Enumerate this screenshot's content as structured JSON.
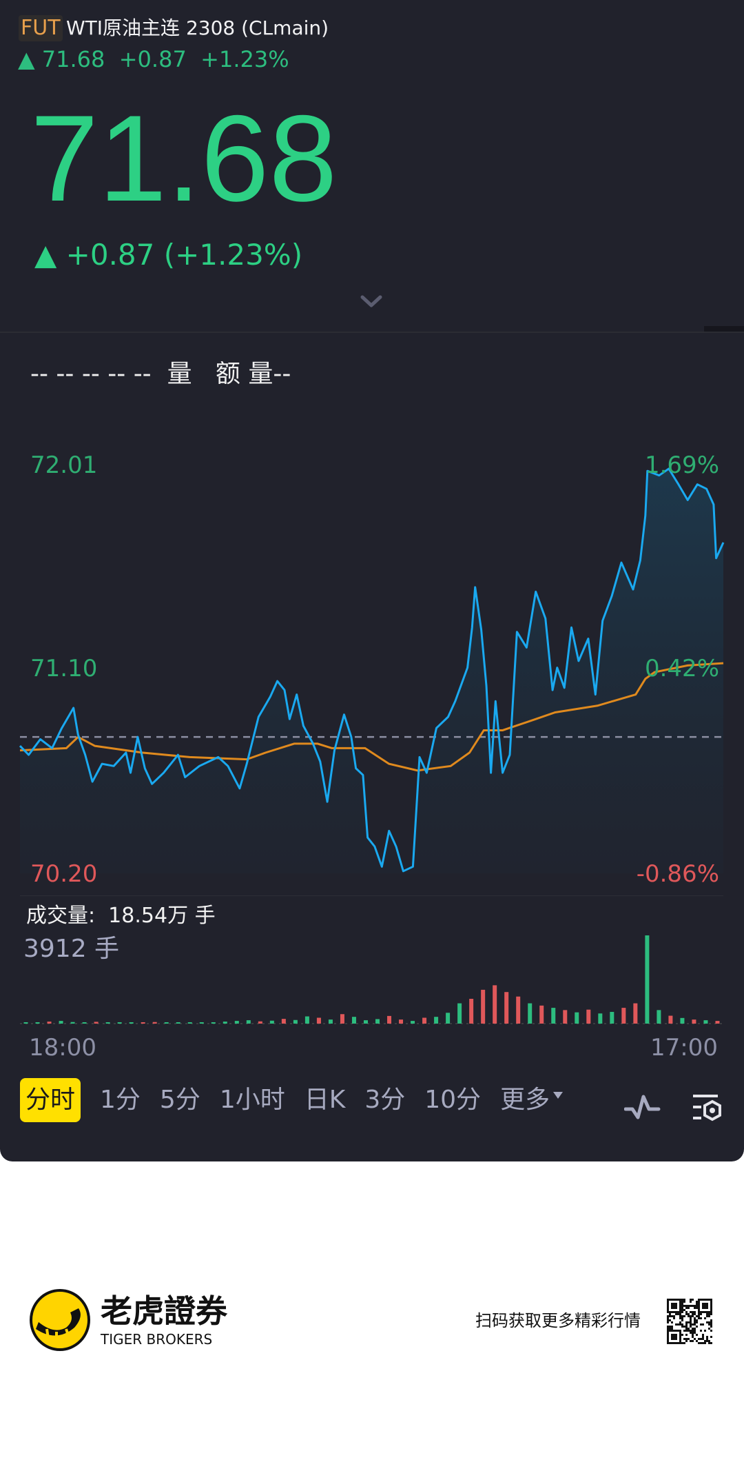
{
  "header": {
    "badge": "FUT",
    "title": "WTI原油主连 2308 (CLmain)",
    "quote_line": "▲ 71.68  +0.87  +1.23%"
  },
  "price": {
    "last": "71.68",
    "change_line": "▲ +0.87 (+1.23%)",
    "expand_icon": "chevron-down-icon"
  },
  "indicator_row": "-- -- -- -- --  量   额 量--",
  "chart_labels": {
    "price_high": "72.01",
    "price_mid": "71.10",
    "price_low": "70.20",
    "pct_high": "1.69%",
    "pct_mid": "0.42%",
    "pct_low": "-0.86%"
  },
  "volume": {
    "total_label": "成交量:  18.54万 手",
    "max_label": "3912 手"
  },
  "time_axis": {
    "start": "18:00",
    "end": "17:00"
  },
  "tabs": [
    {
      "label": "分时",
      "active": true
    },
    {
      "label": "1分"
    },
    {
      "label": "5分"
    },
    {
      "label": "1小时"
    },
    {
      "label": "日K"
    },
    {
      "label": "3分"
    },
    {
      "label": "10分"
    },
    {
      "label": "更多"
    }
  ],
  "toolbar_icons": [
    "chevron-down-small-icon",
    "indicator-wave-icon",
    "chart-settings-icon"
  ],
  "footer": {
    "brand_cn": "老虎證券",
    "brand_en": "TIGER BROKERS",
    "scan_text": "扫码获取更多精彩行情"
  },
  "colors": {
    "background": "#21222c",
    "up": "#2dbd7f",
    "down": "#e0585a",
    "price_line": "#1aa9f0",
    "avg_line": "#e08a1e",
    "active_tab": "#ffe000",
    "badge": "#e8a04c"
  },
  "chart_data": {
    "type": "line",
    "ylim": [
      70.2,
      72.01
    ],
    "prev_close": 70.81,
    "pct_range": [
      -0.86,
      1.69
    ],
    "x_range": [
      "18:00",
      "17:00"
    ],
    "series": [
      {
        "key": "price",
        "points": [
          [
            "18:00",
            70.77
          ],
          [
            "18:17",
            70.73
          ],
          [
            "18:40",
            70.8
          ],
          [
            "19:03",
            70.76
          ],
          [
            "19:22",
            70.85
          ],
          [
            "19:45",
            70.94
          ],
          [
            "19:54",
            70.82
          ],
          [
            "20:08",
            70.73
          ],
          [
            "20:22",
            70.61
          ],
          [
            "20:41",
            70.69
          ],
          [
            "21:04",
            70.68
          ],
          [
            "21:28",
            70.74
          ],
          [
            "21:37",
            70.65
          ],
          [
            "21:51",
            70.81
          ],
          [
            "22:05",
            70.67
          ],
          [
            "22:19",
            70.6
          ],
          [
            "22:42",
            70.65
          ],
          [
            "23:10",
            70.73
          ],
          [
            "23:24",
            70.63
          ],
          [
            "23:52",
            70.68
          ],
          [
            "00:29",
            70.72
          ],
          [
            "00:48",
            70.68
          ],
          [
            "01:11",
            70.58
          ],
          [
            "01:25",
            70.69
          ],
          [
            "01:48",
            70.9
          ],
          [
            "02:11",
            70.99
          ],
          [
            "02:25",
            71.06
          ],
          [
            "02:39",
            71.02
          ],
          [
            "02:49",
            70.89
          ],
          [
            "03:03",
            71.0
          ],
          [
            "03:16",
            70.86
          ],
          [
            "03:35",
            70.78
          ],
          [
            "03:49",
            70.7
          ],
          [
            "04:03",
            70.52
          ],
          [
            "04:17",
            70.75
          ],
          [
            "04:36",
            70.91
          ],
          [
            "04:50",
            70.81
          ],
          [
            "04:59",
            70.67
          ],
          [
            "05:13",
            70.64
          ],
          [
            "05:22",
            70.36
          ],
          [
            "05:36",
            70.32
          ],
          [
            "05:50",
            70.23
          ],
          [
            "06:04",
            70.39
          ],
          [
            "06:18",
            70.32
          ],
          [
            "06:32",
            70.21
          ],
          [
            "06:51",
            70.23
          ],
          [
            "07:04",
            70.72
          ],
          [
            "07:18",
            70.65
          ],
          [
            "07:37",
            70.85
          ],
          [
            "08:00",
            70.9
          ],
          [
            "08:14",
            70.97
          ],
          [
            "08:38",
            71.12
          ],
          [
            "08:47",
            71.3
          ],
          [
            "08:53",
            71.48
          ],
          [
            "09:05",
            71.29
          ],
          [
            "09:15",
            71.04
          ],
          [
            "09:24",
            70.65
          ],
          [
            "09:33",
            70.97
          ],
          [
            "09:47",
            70.65
          ],
          [
            "10:01",
            70.73
          ],
          [
            "10:15",
            71.28
          ],
          [
            "10:34",
            71.21
          ],
          [
            "10:52",
            71.46
          ],
          [
            "11:11",
            71.34
          ],
          [
            "11:25",
            71.02
          ],
          [
            "11:34",
            71.12
          ],
          [
            "11:48",
            71.03
          ],
          [
            "12:02",
            71.3
          ],
          [
            "12:16",
            71.15
          ],
          [
            "12:35",
            71.25
          ],
          [
            "12:49",
            71.0
          ],
          [
            "13:03",
            71.33
          ],
          [
            "13:21",
            71.44
          ],
          [
            "13:40",
            71.59
          ],
          [
            "14:03",
            71.47
          ],
          [
            "14:17",
            71.6
          ],
          [
            "14:27",
            71.8
          ],
          [
            "14:31",
            72.0
          ],
          [
            "14:54",
            71.98
          ],
          [
            "15:13",
            72.01
          ],
          [
            "15:32",
            71.94
          ],
          [
            "15:50",
            71.87
          ],
          [
            "16:09",
            71.94
          ],
          [
            "16:27",
            71.92
          ],
          [
            "16:41",
            71.85
          ],
          [
            "16:46",
            71.61
          ],
          [
            "17:00",
            71.68
          ]
        ]
      },
      {
        "key": "average",
        "points": [
          [
            "18:00",
            70.75
          ],
          [
            "19:31",
            70.76
          ],
          [
            "19:54",
            70.81
          ],
          [
            "20:27",
            70.77
          ],
          [
            "22:00",
            70.74
          ],
          [
            "23:33",
            70.72
          ],
          [
            "01:25",
            70.71
          ],
          [
            "02:02",
            70.74
          ],
          [
            "02:58",
            70.78
          ],
          [
            "03:44",
            70.78
          ],
          [
            "04:12",
            70.76
          ],
          [
            "04:50",
            70.76
          ],
          [
            "05:17",
            70.76
          ],
          [
            "06:04",
            70.69
          ],
          [
            "07:00",
            70.66
          ],
          [
            "08:05",
            70.68
          ],
          [
            "08:42",
            70.74
          ],
          [
            "09:10",
            70.84
          ],
          [
            "09:47",
            70.84
          ],
          [
            "10:52",
            70.89
          ],
          [
            "11:30",
            70.92
          ],
          [
            "12:53",
            70.95
          ],
          [
            "14:08",
            71.0
          ],
          [
            "14:27",
            71.07
          ],
          [
            "14:45",
            71.1
          ],
          [
            "15:50",
            71.13
          ],
          [
            "17:00",
            71.14
          ]
        ]
      }
    ],
    "volume": {
      "max": 3912,
      "values": [
        60,
        40,
        90,
        120,
        70,
        50,
        80,
        60,
        50,
        40,
        60,
        70,
        40,
        50,
        40,
        60,
        50,
        90,
        120,
        150,
        100,
        130,
        210,
        160,
        320,
        260,
        180,
        420,
        300,
        150,
        200,
        340,
        180,
        120,
        260,
        300,
        480,
        900,
        1100,
        1500,
        1700,
        1400,
        1200,
        900,
        800,
        700,
        600,
        500,
        620,
        450,
        520,
        700,
        900,
        3912,
        600,
        350,
        250,
        180,
        150,
        120
      ],
      "directions": "ggrgggrgggrrggggggggrgrggrgrgggrrgrgggrrrrrgrgrgrggrrggrgrgr"
    }
  }
}
